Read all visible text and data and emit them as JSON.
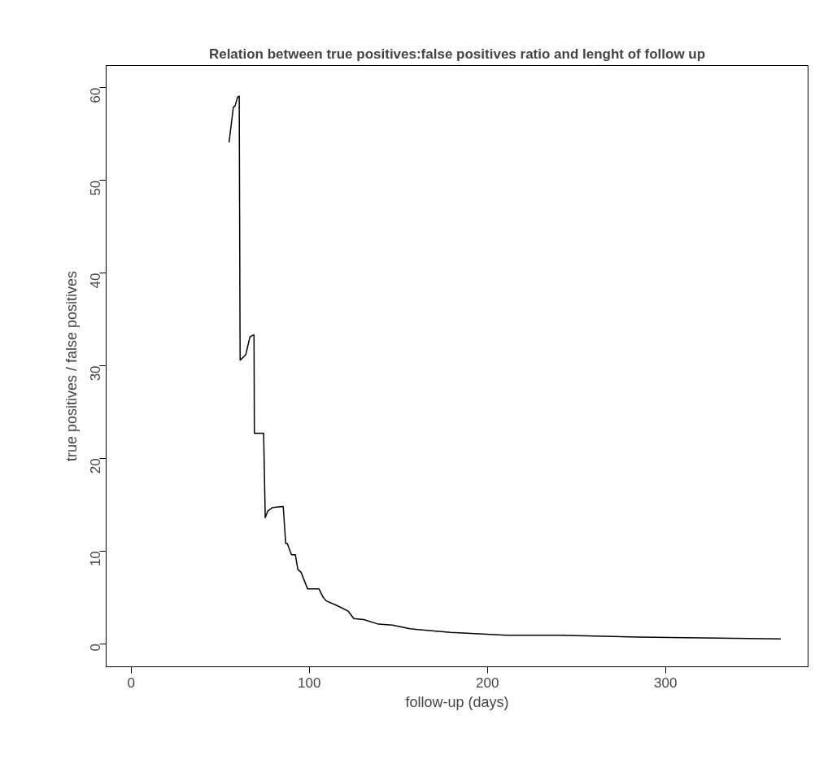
{
  "chart_data": {
    "type": "line",
    "title": "Relation between true positives:false positives ratio and lenght of follow up",
    "xlabel": "follow-up (days)",
    "ylabel": "true positives / false positives",
    "x": [
      55,
      57.4,
      58.3,
      59.8,
      60.7,
      61.2,
      63.5,
      64.4,
      66.7,
      68.5,
      69,
      69.2,
      74.4,
      75.3,
      76.7,
      79.5,
      85.4,
      86.8,
      87.7,
      90,
      92.2,
      93.6,
      95.4,
      99.1,
      105.5,
      107.8,
      109.6,
      114.6,
      121.9,
      125,
      130.6,
      138.8,
      146.6,
      156.5,
      179.4,
      211,
      240.9,
      284.7,
      364.7
    ],
    "values": [
      54.1,
      57.9,
      58,
      59,
      59.1,
      30.6,
      31,
      31.2,
      33.1,
      33.3,
      33.3,
      22.7,
      22.7,
      13.6,
      14.3,
      14.7,
      14.8,
      10.8,
      10.8,
      9.6,
      9.6,
      8,
      7.7,
      5.9,
      5.9,
      5,
      4.6,
      4.2,
      3.5,
      2.7,
      2.6,
      2.1,
      2.0,
      1.6,
      1.2,
      0.9,
      0.9,
      0.7,
      0.5
    ],
    "color": "#000000",
    "xlim": [
      -14,
      380
    ],
    "ylim": [
      -2.5,
      62.4
    ],
    "xticks": [
      0,
      100,
      200,
      300
    ],
    "yticks": [
      0,
      10,
      20,
      30,
      40,
      50,
      60
    ],
    "grid": false,
    "marker": "none",
    "line_style": "solid"
  }
}
